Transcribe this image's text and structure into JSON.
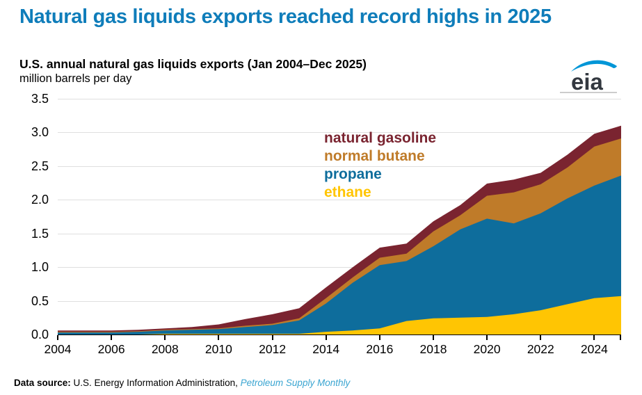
{
  "page_title": "Natural gas liquids exports reached record highs in 2025",
  "chart_header": {
    "title": "U.S. annual natural gas liquids exports (Jan 2004–Dec 2025)",
    "units": "million barrels per day"
  },
  "logo": {
    "text": "eia",
    "swoosh_color": "#0096d7",
    "text_color": "#333840"
  },
  "footer": {
    "label": "Data source:",
    "source": " U.S. Energy Information Administration, ",
    "publication": "Petroleum Supply Monthly"
  },
  "colors": {
    "headline_blue": "#0f7dba",
    "link_blue": "#3aa5d1",
    "gridline": "#dfdfdf",
    "axis": "#000000"
  },
  "chart_data": {
    "type": "area",
    "stacked": true,
    "title": "U.S. annual natural gas liquids exports (Jan 2004–Dec 2025)",
    "ylabel": "million barrels per day",
    "xlabel": "",
    "ylim": [
      0,
      3.5
    ],
    "yticks": [
      "0.0",
      "0.5",
      "1.0",
      "1.5",
      "2.0",
      "2.5",
      "3.0",
      "3.5"
    ],
    "xticks": [
      2004,
      2006,
      2008,
      2010,
      2012,
      2014,
      2016,
      2018,
      2020,
      2022,
      2024
    ],
    "grid": "horizontal",
    "legend_position": "inside-top-center",
    "x": [
      2004,
      2005,
      2006,
      2007,
      2008,
      2009,
      2010,
      2011,
      2012,
      2013,
      2014,
      2015,
      2016,
      2017,
      2018,
      2019,
      2020,
      2021,
      2022,
      2023,
      2024,
      2025
    ],
    "series": [
      {
        "name": "ethane",
        "color": "#ffc503",
        "values": [
          0.0,
          0.0,
          0.0,
          0.0,
          0.01,
          0.01,
          0.01,
          0.01,
          0.01,
          0.01,
          0.04,
          0.06,
          0.09,
          0.2,
          0.24,
          0.25,
          0.26,
          0.3,
          0.36,
          0.45,
          0.54,
          0.57
        ]
      },
      {
        "name": "propane",
        "color": "#0e6d9c",
        "values": [
          0.03,
          0.03,
          0.03,
          0.04,
          0.05,
          0.06,
          0.07,
          0.1,
          0.13,
          0.2,
          0.42,
          0.71,
          0.94,
          0.89,
          1.07,
          1.31,
          1.46,
          1.35,
          1.44,
          1.57,
          1.67,
          1.79
        ]
      },
      {
        "name": "normal butane",
        "color": "#bf7b29",
        "values": [
          0.01,
          0.01,
          0.01,
          0.01,
          0.01,
          0.01,
          0.01,
          0.02,
          0.02,
          0.03,
          0.08,
          0.08,
          0.11,
          0.11,
          0.22,
          0.21,
          0.34,
          0.46,
          0.43,
          0.46,
          0.58,
          0.55
        ]
      },
      {
        "name": "natural gasoline",
        "color": "#7a2430",
        "values": [
          0.02,
          0.02,
          0.02,
          0.02,
          0.02,
          0.03,
          0.06,
          0.1,
          0.14,
          0.15,
          0.16,
          0.15,
          0.15,
          0.15,
          0.15,
          0.15,
          0.18,
          0.19,
          0.17,
          0.19,
          0.19,
          0.19
        ]
      }
    ],
    "legend": [
      {
        "label": "natural gasoline",
        "color": "#7a2430"
      },
      {
        "label": "normal butane",
        "color": "#bf7b29"
      },
      {
        "label": "propane",
        "color": "#0e6d9c"
      },
      {
        "label": "ethane",
        "color": "#ffc503"
      }
    ]
  }
}
